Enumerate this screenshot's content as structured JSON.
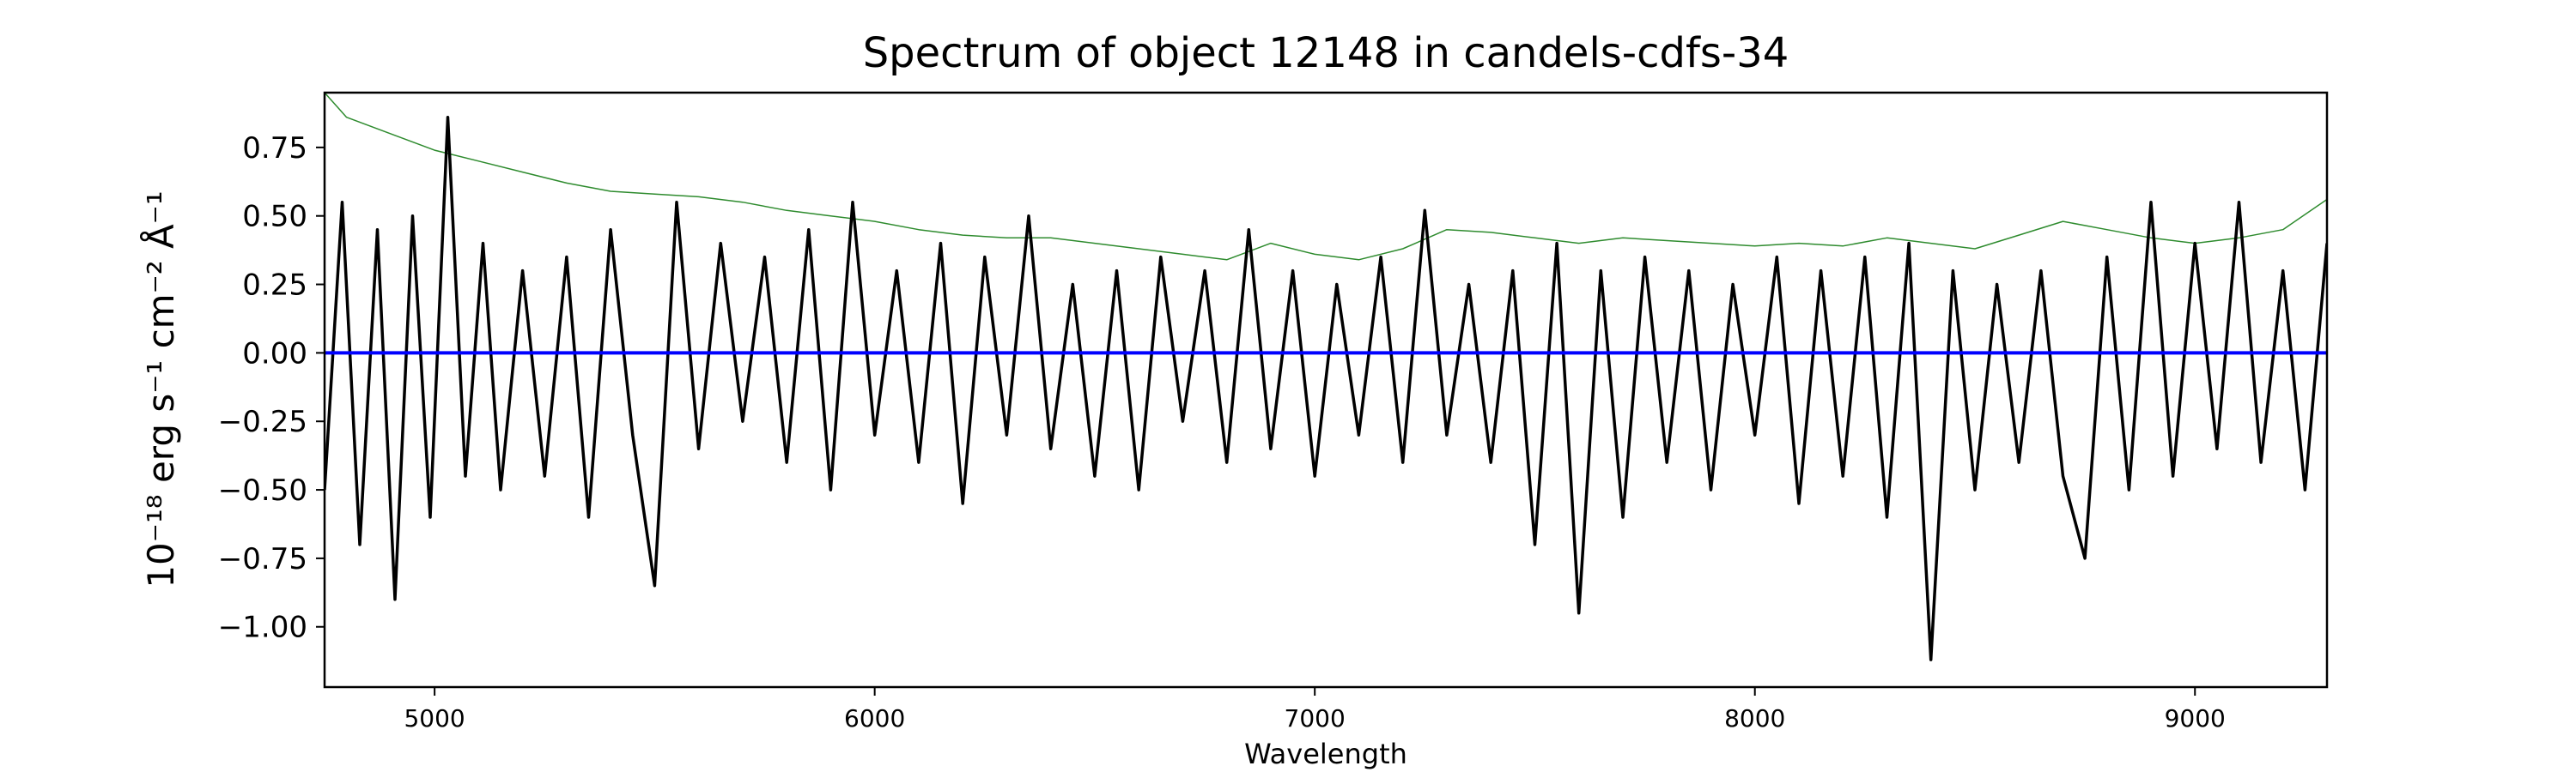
{
  "chart_data": {
    "type": "line",
    "title": "Spectrum of object 12148 in candels-cdfs-34",
    "xlabel": "Wavelength",
    "ylabel": "10⁻¹⁸ erg s⁻¹ cm⁻² Å⁻¹",
    "xlim": [
      4750,
      9300
    ],
    "ylim": [
      -1.22,
      0.95
    ],
    "x_ticks": [
      5000,
      6000,
      7000,
      8000,
      9000
    ],
    "x_tick_labels": [
      "5000",
      "6000",
      "7000",
      "8000",
      "9000"
    ],
    "y_ticks": [
      0.75,
      0.5,
      0.25,
      0.0,
      -0.25,
      -0.5,
      -0.75,
      -1.0
    ],
    "y_tick_labels": [
      "0.75",
      "0.50",
      "0.25",
      "0.00",
      "−0.25",
      "−0.50",
      "−0.75",
      "−1.00"
    ],
    "grid": false,
    "legend": "none",
    "series": [
      {
        "role": "flux",
        "color": "#000000",
        "x": [
          4750,
          4790,
          4830,
          4870,
          4910,
          4950,
          4990,
          5030,
          5070,
          5110,
          5150,
          5200,
          5250,
          5300,
          5350,
          5400,
          5450,
          5500,
          5550,
          5600,
          5650,
          5700,
          5750,
          5800,
          5850,
          5900,
          5950,
          6000,
          6050,
          6100,
          6150,
          6200,
          6250,
          6300,
          6350,
          6400,
          6450,
          6500,
          6550,
          6600,
          6650,
          6700,
          6750,
          6800,
          6850,
          6900,
          6950,
          7000,
          7050,
          7100,
          7150,
          7200,
          7250,
          7300,
          7350,
          7400,
          7450,
          7500,
          7550,
          7600,
          7650,
          7700,
          7750,
          7800,
          7850,
          7900,
          7950,
          8000,
          8050,
          8100,
          8150,
          8200,
          8250,
          8300,
          8350,
          8400,
          8450,
          8500,
          8550,
          8600,
          8650,
          8700,
          8750,
          8800,
          8850,
          8900,
          8950,
          9000,
          9050,
          9100,
          9150,
          9200,
          9250,
          9300
        ],
        "y": [
          -0.5,
          0.55,
          -0.7,
          0.45,
          -0.9,
          0.5,
          -0.6,
          0.86,
          -0.45,
          0.4,
          -0.5,
          0.3,
          -0.45,
          0.35,
          -0.6,
          0.45,
          -0.3,
          -0.85,
          0.55,
          -0.35,
          0.4,
          -0.25,
          0.35,
          -0.4,
          0.45,
          -0.5,
          0.55,
          -0.3,
          0.3,
          -0.4,
          0.4,
          -0.55,
          0.35,
          -0.3,
          0.5,
          -0.35,
          0.25,
          -0.45,
          0.3,
          -0.5,
          0.35,
          -0.25,
          0.3,
          -0.4,
          0.45,
          -0.35,
          0.3,
          -0.45,
          0.25,
          -0.3,
          0.35,
          -0.4,
          0.52,
          -0.3,
          0.25,
          -0.4,
          0.3,
          -0.7,
          0.4,
          -0.95,
          0.3,
          -0.6,
          0.35,
          -0.4,
          0.3,
          -0.5,
          0.25,
          -0.3,
          0.35,
          -0.55,
          0.3,
          -0.45,
          0.35,
          -0.6,
          0.4,
          -1.12,
          0.3,
          -0.5,
          0.25,
          -0.4,
          0.3,
          -0.45,
          -0.75,
          0.35,
          -0.5,
          0.55,
          -0.45,
          0.4,
          -0.35,
          0.55,
          -0.4,
          0.3,
          -0.5,
          0.4
        ]
      },
      {
        "role": "model",
        "color": "#2e8b2e",
        "x": [
          4750,
          4800,
          4900,
          5000,
          5100,
          5200,
          5300,
          5400,
          5500,
          5600,
          5700,
          5800,
          5900,
          6000,
          6100,
          6200,
          6300,
          6400,
          6500,
          6600,
          6700,
          6800,
          6900,
          7000,
          7100,
          7200,
          7300,
          7400,
          7500,
          7600,
          7700,
          7800,
          7900,
          8000,
          8100,
          8200,
          8300,
          8400,
          8500,
          8600,
          8700,
          8800,
          8900,
          9000,
          9100,
          9200,
          9300
        ],
        "y": [
          0.95,
          0.86,
          0.8,
          0.74,
          0.7,
          0.66,
          0.62,
          0.59,
          0.58,
          0.57,
          0.55,
          0.52,
          0.5,
          0.48,
          0.45,
          0.43,
          0.42,
          0.42,
          0.4,
          0.38,
          0.36,
          0.34,
          0.4,
          0.36,
          0.34,
          0.38,
          0.45,
          0.44,
          0.42,
          0.4,
          0.42,
          0.41,
          0.4,
          0.39,
          0.4,
          0.39,
          0.42,
          0.4,
          0.38,
          0.43,
          0.48,
          0.45,
          0.42,
          0.4,
          0.42,
          0.45,
          0.56
        ]
      },
      {
        "role": "zero",
        "color": "#0000ff",
        "x": [
          4750,
          9300
        ],
        "y": [
          0.0,
          0.0
        ]
      }
    ]
  }
}
